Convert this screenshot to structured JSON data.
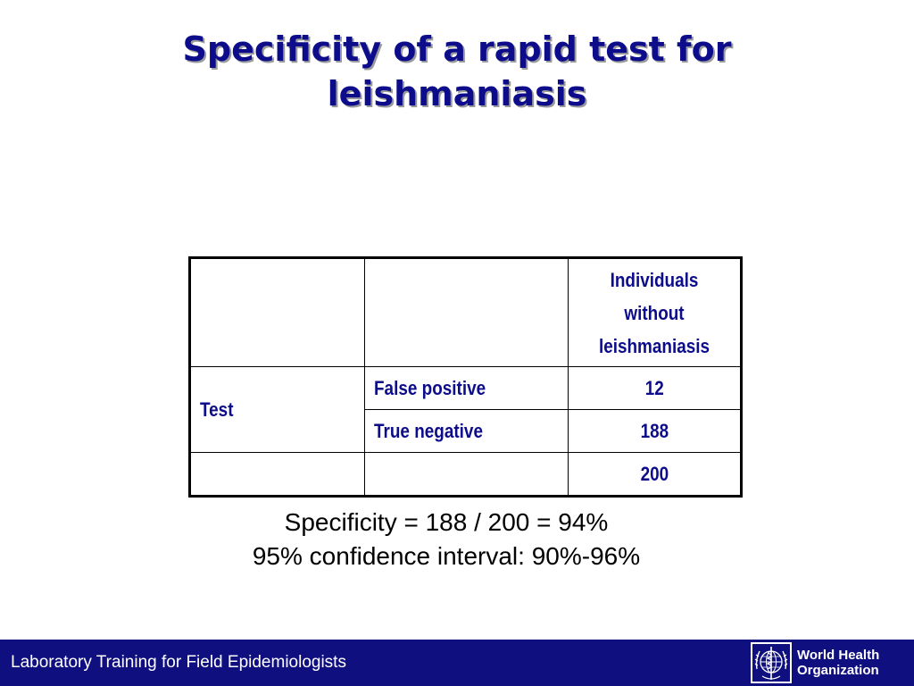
{
  "slide": {
    "title": "Specificity of a rapid test for leishmaniasis"
  },
  "table": {
    "header": [
      "",
      "",
      "Individuals without leishmaniasis"
    ],
    "group_label": "Test",
    "rows": [
      {
        "label": "False positive",
        "value": "12"
      },
      {
        "label": "True negative",
        "value": "188"
      }
    ],
    "total": "200"
  },
  "results": {
    "specificity": "Specificity = 188 / 200 = 94%",
    "confidence_interval": "95% confidence interval: 90%-96%"
  },
  "footer": {
    "course": "Laboratory Training for Field Epidemiologists",
    "logo": {
      "line1": "World Health",
      "line2": "Organization",
      "icon": "who-emblem-icon"
    }
  },
  "colors": {
    "title": "#0d0d8c",
    "footer_bg": "#0f0f80"
  }
}
